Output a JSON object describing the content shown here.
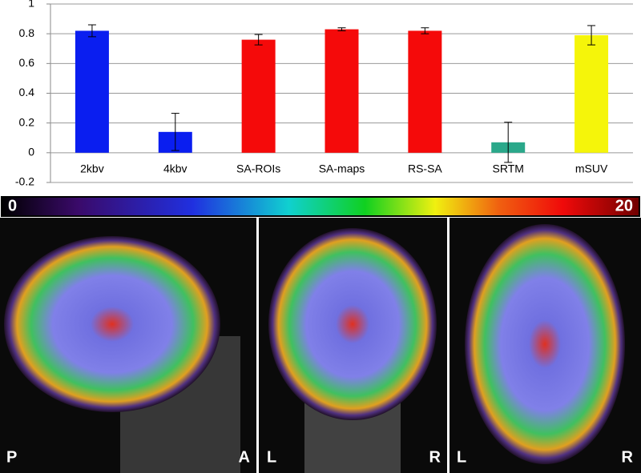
{
  "chart_data": {
    "type": "bar",
    "categories": [
      "2kbv",
      "4kbv",
      "SA-ROIs",
      "SA-maps",
      "RS-SA",
      "SRTM",
      "mSUV"
    ],
    "values": [
      0.82,
      0.14,
      0.76,
      0.83,
      0.82,
      0.07,
      0.79
    ],
    "errors": [
      0.04,
      0.125,
      0.035,
      0.01,
      0.02,
      0.135,
      0.065
    ],
    "colors": [
      "#0a1ef0",
      "#0a1ef0",
      "#f50a0a",
      "#f50a0a",
      "#f50a0a",
      "#2aa88a",
      "#f5f50a"
    ],
    "ylim": [
      -0.2,
      1
    ],
    "yticks": [
      -0.2,
      0,
      0.2,
      0.4,
      0.6,
      0.8,
      1
    ],
    "grid": true
  },
  "colorbar": {
    "ticks": [
      0,
      20
    ]
  },
  "panels": [
    {
      "left": "P",
      "right": "A"
    },
    {
      "left": "L",
      "right": "R"
    },
    {
      "left": "L",
      "right": "R"
    }
  ]
}
